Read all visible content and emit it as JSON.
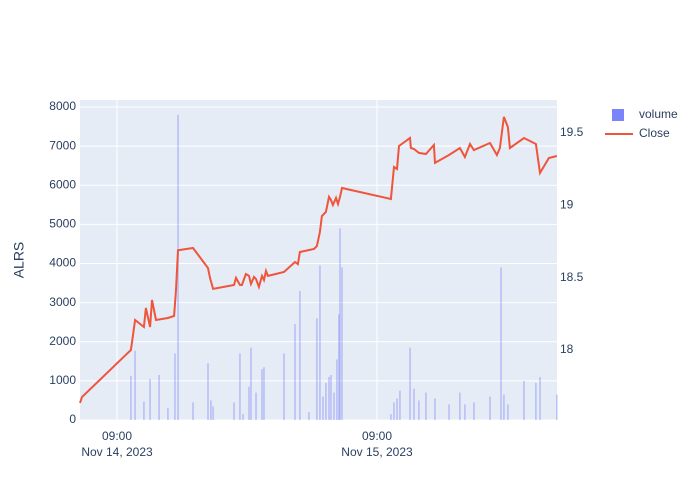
{
  "chart_data": {
    "type": "combo",
    "y_label": "ALRS",
    "xlim": [
      "2023-11-14 05:35",
      "2023-11-16 01:37"
    ],
    "xticks": [
      {
        "value": "2023-11-14 09:00",
        "label": "09:00\nNov 14, 2023"
      },
      {
        "value": "2023-11-15 09:00",
        "label": "09:00\nNov 15, 2023"
      }
    ],
    "ylim": [
      0,
      8180
    ],
    "yticks": [
      0,
      1000,
      2000,
      3000,
      4000,
      5000,
      6000,
      7000,
      8000
    ],
    "y2lim": [
      17.516,
      19.728
    ],
    "y2ticks": [
      18,
      18.5,
      19,
      19.5
    ],
    "grid": true,
    "legend": "top-right",
    "series": [
      {
        "name": "volume",
        "type": "bar",
        "color": "#636efa",
        "x": [
          "2023-11-14 10:17",
          "2023-11-14 10:40",
          "2023-11-14 11:29",
          "2023-11-14 12:03",
          "2023-11-14 12:53",
          "2023-11-14 13:42",
          "2023-11-14 14:21",
          "2023-11-14 14:38",
          "2023-11-14 16:01",
          "2023-11-14 17:24",
          "2023-11-14 17:40",
          "2023-11-14 17:52",
          "2023-11-14 19:48",
          "2023-11-14 20:21",
          "2023-11-14 20:38",
          "2023-11-14 21:11",
          "2023-11-14 21:22",
          "2023-11-14 21:50",
          "2023-11-14 22:23",
          "2023-11-14 22:34",
          "2023-11-15 00:25",
          "2023-11-15 01:26",
          "2023-11-15 01:53",
          "2023-11-15 02:43",
          "2023-11-15 03:27",
          "2023-11-15 03:44",
          "2023-11-15 04:01",
          "2023-11-15 04:17",
          "2023-11-15 04:34",
          "2023-11-15 04:45",
          "2023-11-15 05:02",
          "2023-11-15 05:18",
          "2023-11-15 05:29",
          "2023-11-15 05:35",
          "2023-11-15 05:46",
          "2023-11-15 10:17",
          "2023-11-15 10:34",
          "2023-11-15 10:51",
          "2023-11-15 11:07",
          "2023-11-15 12:03",
          "2023-11-15 12:25",
          "2023-11-15 12:52",
          "2023-11-15 13:31",
          "2023-11-15 14:21",
          "2023-11-15 15:39",
          "2023-11-15 16:39",
          "2023-11-15 17:07",
          "2023-11-15 17:57",
          "2023-11-15 19:26",
          "2023-11-15 20:27",
          "2023-11-15 20:43",
          "2023-11-15 21:05",
          "2023-11-15 22:34",
          "2023-11-15 23:40",
          "2023-11-16 00:03",
          "2023-11-16 01:36"
        ],
        "values": [
          1130,
          1770,
          470,
          1050,
          1150,
          300,
          1700,
          7800,
          450,
          1450,
          500,
          350,
          450,
          1700,
          150,
          850,
          1850,
          700,
          1300,
          1350,
          1700,
          2450,
          3300,
          200,
          2600,
          3950,
          600,
          950,
          1100,
          1150,
          700,
          1550,
          2700,
          4900,
          3900,
          150,
          450,
          550,
          750,
          1850,
          800,
          500,
          700,
          550,
          400,
          700,
          400,
          450,
          600,
          3900,
          650,
          400,
          1000,
          950,
          1100,
          650
        ]
      },
      {
        "name": "Close",
        "type": "line",
        "color": "#ef553b",
        "axis": "y2",
        "x": [
          "2023-11-14 05:35",
          "2023-11-14 05:46",
          "2023-11-14 10:17",
          "2023-11-14 10:40",
          "2023-11-14 11:29",
          "2023-11-14 11:40",
          "2023-11-14 12:03",
          "2023-11-14 12:14",
          "2023-11-14 12:36",
          "2023-11-14 13:42",
          "2023-11-14 14:16",
          "2023-11-14 14:27",
          "2023-11-14 14:38",
          "2023-11-14 16:01",
          "2023-11-14 17:24",
          "2023-11-14 17:35",
          "2023-11-14 17:52",
          "2023-11-14 19:48",
          "2023-11-14 19:59",
          "2023-11-14 20:21",
          "2023-11-14 20:32",
          "2023-11-14 20:54",
          "2023-11-14 21:11",
          "2023-11-14 21:22",
          "2023-11-14 21:39",
          "2023-11-14 21:50",
          "2023-11-14 22:06",
          "2023-11-14 22:23",
          "2023-11-14 22:34",
          "2023-11-14 22:45",
          "2023-11-14 22:56",
          "2023-11-15 00:25",
          "2023-11-15 01:26",
          "2023-11-15 01:42",
          "2023-11-15 01:53",
          "2023-11-15 03:11",
          "2023-11-15 03:27",
          "2023-11-15 03:44",
          "2023-11-15 03:55",
          "2023-11-15 04:17",
          "2023-11-15 04:34",
          "2023-11-15 04:45",
          "2023-11-15 04:56",
          "2023-11-15 05:13",
          "2023-11-15 05:24",
          "2023-11-15 05:35",
          "2023-11-15 05:46",
          "2023-11-15 10:17",
          "2023-11-15 10:34",
          "2023-11-15 10:51",
          "2023-11-15 11:02",
          "2023-11-15 12:03",
          "2023-11-15 12:08",
          "2023-11-15 12:25",
          "2023-11-15 12:52",
          "2023-11-15 13:31",
          "2023-11-15 14:15",
          "2023-11-15 14:21",
          "2023-11-15 15:39",
          "2023-11-15 16:39",
          "2023-11-15 17:07",
          "2023-11-15 17:35",
          "2023-11-15 17:57",
          "2023-11-15 19:26",
          "2023-11-15 20:04",
          "2023-11-15 20:21",
          "2023-11-15 20:43",
          "2023-11-15 21:05",
          "2023-11-15 21:16",
          "2023-11-15 22:34",
          "2023-11-15 23:40",
          "2023-11-16 00:03",
          "2023-11-16 00:52",
          "2023-11-16 01:36"
        ],
        "values": [
          17.634,
          17.675,
          18.0,
          18.207,
          18.159,
          18.29,
          18.159,
          18.346,
          18.207,
          18.221,
          18.235,
          18.415,
          18.69,
          18.705,
          18.567,
          18.498,
          18.422,
          18.449,
          18.498,
          18.449,
          18.449,
          18.525,
          18.512,
          18.456,
          18.505,
          18.491,
          18.436,
          18.512,
          18.484,
          18.546,
          18.512,
          18.539,
          18.608,
          18.594,
          18.677,
          18.698,
          18.719,
          18.816,
          18.926,
          18.954,
          19.058,
          19.037,
          19.002,
          19.051,
          19.009,
          19.058,
          19.12,
          19.044,
          19.265,
          19.251,
          19.41,
          19.465,
          19.396,
          19.389,
          19.362,
          19.355,
          19.417,
          19.293,
          19.348,
          19.396,
          19.334,
          19.424,
          19.382,
          19.431,
          19.348,
          19.396,
          19.611,
          19.541,
          19.396,
          19.465,
          19.424,
          19.224,
          19.327,
          19.341
        ]
      }
    ]
  }
}
